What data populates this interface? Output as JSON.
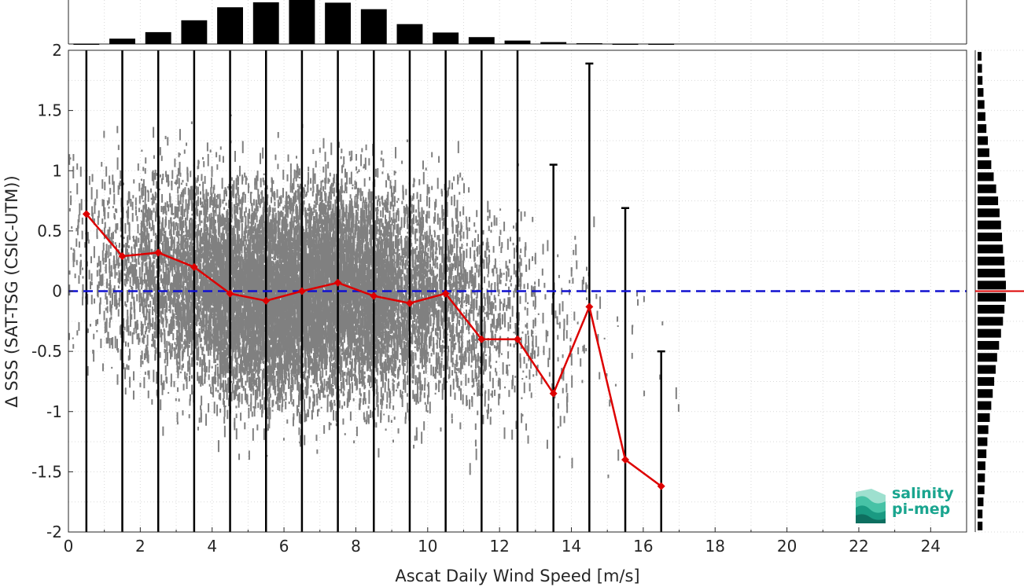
{
  "chart_data": {
    "type": "scatter",
    "xlabel": "Ascat Daily Wind Speed [m/s]",
    "ylabel": "Δ SSS (SAT-TSG (CSIC-UTM))",
    "xlim": [
      0,
      25
    ],
    "ylim": [
      -2,
      2
    ],
    "xticks": [
      "0",
      "2",
      "4",
      "6",
      "8",
      "10",
      "12",
      "14",
      "16",
      "18",
      "20",
      "22",
      "24"
    ],
    "yticks": [
      "2",
      "1.5",
      "1",
      "0.5",
      "0",
      "-0.5",
      "-1",
      "-1.5",
      "-2"
    ],
    "grid": true,
    "zero_line": {
      "y": 0,
      "color": "#1010d0",
      "style": "dashed"
    },
    "scatter_color": "#808080",
    "mean_series": {
      "color": "#dd0000",
      "x": [
        0.5,
        1.5,
        2.5,
        3.5,
        4.5,
        5.5,
        6.5,
        7.5,
        8.5,
        9.5,
        10.5,
        11.5,
        12.5,
        13.5,
        14.5,
        15.5,
        16.5
      ],
      "y": [
        0.64,
        0.29,
        0.32,
        0.2,
        -0.02,
        -0.08,
        0.0,
        0.07,
        -0.04,
        -0.1,
        -0.02,
        -0.4,
        -0.4,
        -0.85,
        -0.13,
        -1.4,
        -1.62
      ]
    },
    "error_bars": {
      "x": [
        0.5,
        1.5,
        2.5,
        3.5,
        4.5,
        5.5,
        6.5,
        7.5,
        8.5,
        9.5,
        10.5,
        11.5,
        12.5,
        13.5,
        14.5,
        15.5,
        16.5
      ],
      "upper": [
        2,
        2,
        2,
        2,
        2,
        2,
        2,
        2,
        2,
        2,
        2,
        2,
        2,
        1.05,
        1.89,
        0.69,
        -0.5
      ],
      "lower": [
        -2,
        -2,
        -2,
        -2,
        -2,
        -2,
        -2,
        -2,
        -2,
        -2,
        -2,
        -2,
        -2,
        -2,
        -2,
        -2,
        -2
      ]
    },
    "top_histogram": {
      "x": [
        0.5,
        1.5,
        2.5,
        3.5,
        4.5,
        5.5,
        6.5,
        7.5,
        8.5,
        9.5,
        10.5,
        11.5,
        12.5,
        13.5,
        14.5,
        15.5,
        16.5
      ],
      "counts": [
        1,
        14,
        31,
        62,
        96,
        109,
        115,
        108,
        91,
        52,
        30,
        18,
        9,
        5,
        2,
        1,
        1
      ]
    },
    "right_histogram": {
      "y": [
        -1.95,
        -1.85,
        -1.75,
        -1.65,
        -1.55,
        -1.45,
        -1.35,
        -1.25,
        -1.15,
        -1.05,
        -0.95,
        -0.85,
        -0.75,
        -0.65,
        -0.55,
        -0.45,
        -0.35,
        -0.25,
        -0.15,
        -0.05,
        0.05,
        0.15,
        0.25,
        0.35,
        0.45,
        0.55,
        0.65,
        0.75,
        0.85,
        0.95,
        1.05,
        1.15,
        1.25,
        1.35,
        1.45,
        1.55,
        1.65,
        1.75,
        1.85,
        1.95
      ],
      "counts": [
        10,
        10,
        12,
        14,
        15,
        16,
        18,
        20,
        22,
        25,
        28,
        31,
        34,
        37,
        40,
        44,
        48,
        52,
        55,
        58,
        58,
        56,
        55,
        52,
        50,
        48,
        45,
        42,
        38,
        33,
        28,
        24,
        21,
        18,
        16,
        14,
        12,
        10,
        9,
        8
      ]
    },
    "right_histogram_marker": {
      "y": 0,
      "color": "#dd0000"
    }
  },
  "logo": {
    "line1": "salinity",
    "line2": "pi-mep"
  }
}
